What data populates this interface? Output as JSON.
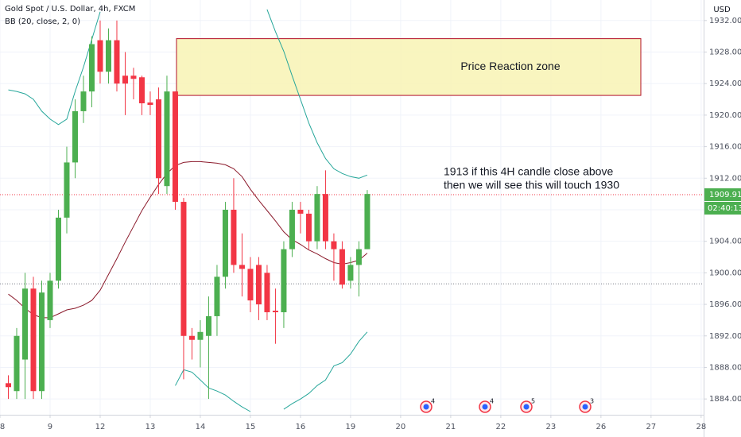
{
  "chart_data": {
    "type": "candlestick",
    "title": "Gold Spot / U.S. Dollar, 4h, FXCM",
    "subtitle": "BB (20, close, 2, 0)",
    "currency": "USD",
    "open": [
      1886,
      1885,
      1889,
      1898,
      1885,
      1894,
      1899,
      1907,
      1914,
      1920.5,
      1923,
      1929.5,
      1925.5,
      1929.5,
      1925,
      1925,
      1924.8,
      1921.6,
      1922,
      1911,
      1923,
      1909,
      1892,
      1891.5,
      1892,
      1894.5,
      1899.5,
      1908,
      1901,
      1900.5,
      1901,
      1900,
      1895.2,
      1895,
      1903,
      1908,
      1907.5,
      1904,
      1910,
      1904,
      1903,
      1899,
      1901,
      1903
    ],
    "high": [
      1887,
      1893,
      1900,
      1899.5,
      1899,
      1900,
      1908,
      1916,
      1922,
      1925,
      1930,
      1932,
      1931,
      1932,
      1928,
      1926,
      1925,
      1923,
      1923.5,
      1925,
      1923,
      1909.5,
      1893,
      1894,
      1897,
      1901,
      1909,
      1912,
      1905,
      1902,
      1902,
      1901,
      1898,
      1904,
      1909,
      1909,
      1908,
      1911,
      1913,
      1905,
      1904,
      1902,
      1904,
      1910.5
    ],
    "low": [
      1884,
      1884,
      1884,
      1884,
      1884,
      1893,
      1898,
      1905,
      1912,
      1919,
      1921,
      1924,
      1924,
      1923,
      1920,
      1922,
      1920,
      1920,
      1910,
      1910,
      1908,
      1886.5,
      1889,
      1888,
      1884,
      1892,
      1898,
      1900,
      1897,
      1895,
      1894,
      1894,
      1891,
      1893,
      1902,
      1905,
      1903,
      1903,
      1903,
      1899,
      1898,
      1898,
      1897,
      1903
    ],
    "close": [
      1885.5,
      1892,
      1898,
      1885,
      1897.5,
      1899,
      1907,
      1914,
      1920.5,
      1923,
      1929,
      1925.5,
      1929.5,
      1924,
      1924,
      1924.6,
      1921.5,
      1921.3,
      1912,
      1923,
      1909,
      1892,
      1891.5,
      1892.5,
      1894.5,
      1899.5,
      1908,
      1901,
      1900.5,
      1896.5,
      1896,
      1895,
      1895,
      1903,
      1908,
      1907.5,
      1904,
      1910,
      1904,
      1903,
      1898.5,
      1901,
      1903,
      1910
    ],
    "up_color": "#4caf50",
    "down_color": "#f23645",
    "series": [
      {
        "name": "BB upper",
        "color": "#26a69a",
        "values": [
          1923.2,
          1923.0,
          1922.7,
          1922.0,
          1920.5,
          1919.5,
          1918.8,
          1919.5,
          1923.0,
          1926.1,
          1929.6,
          1933.1,
          null,
          null,
          null,
          null,
          null,
          null,
          null,
          null,
          null,
          null,
          null,
          null,
          null,
          null,
          null,
          null,
          null,
          null,
          null,
          1933.4,
          1930.6,
          1928.1,
          1925.0,
          1922.0,
          1919.0,
          1916.5,
          1914.5,
          1913.2,
          1912.6,
          1912.2,
          1912.0,
          1912.4
        ]
      },
      {
        "name": "BB basis",
        "color": "#8b1a2b",
        "values": [
          1897.3,
          1896.5,
          1895.5,
          1894.7,
          1894.3,
          1894.3,
          1894.8,
          1895.3,
          1895.5,
          1895.9,
          1896.5,
          1897.8,
          1899.8,
          1901.8,
          1903.9,
          1905.9,
          1907.9,
          1909.6,
          1911.2,
          1912.6,
          1913.6,
          1914.0,
          1914.1,
          1914.1,
          1914.0,
          1913.9,
          1913.7,
          1913.2,
          1912.2,
          1910.6,
          1909.2,
          1907.9,
          1906.6,
          1905.2,
          1904.2,
          1903.6,
          1902.9,
          1902.4,
          1901.8,
          1901.3,
          1901.1,
          1901.3,
          1901.6,
          1902.5
        ]
      },
      {
        "name": "BB lower",
        "color": "#26a69a",
        "values": [
          null,
          null,
          null,
          null,
          null,
          null,
          null,
          null,
          null,
          null,
          null,
          null,
          null,
          null,
          null,
          null,
          null,
          null,
          null,
          null,
          1885.7,
          1887.7,
          1887.4,
          1886.4,
          1885.4,
          1885.0,
          1884.5,
          1883.7,
          1883.0,
          1882.4,
          null,
          null,
          null,
          1882.7,
          1883.4,
          1884.0,
          1884.7,
          1885.7,
          1886.4,
          1888.2,
          1888.6,
          1889.7,
          1891.3,
          1892.5
        ]
      }
    ],
    "xlim": [
      -1,
      83.3
    ],
    "xticks": [
      {
        "value": -1,
        "label": "8"
      },
      {
        "value": 5,
        "label": "9"
      },
      {
        "value": 11,
        "label": "12"
      },
      {
        "value": 17,
        "label": "13"
      },
      {
        "value": 23,
        "label": "14"
      },
      {
        "value": 29,
        "label": "15"
      },
      {
        "value": 35,
        "label": "16"
      },
      {
        "value": 41,
        "label": "19"
      },
      {
        "value": 47,
        "label": "20"
      },
      {
        "value": 53,
        "label": "21"
      },
      {
        "value": 59,
        "label": "22"
      },
      {
        "value": 65,
        "label": "23"
      },
      {
        "value": 71,
        "label": "26"
      },
      {
        "value": 77,
        "label": "27"
      },
      {
        "value": 83,
        "label": "28"
      }
    ],
    "ylim": [
      1882,
      1934.6
    ],
    "yticks": [
      {
        "value": 1884,
        "label": "1884.00"
      },
      {
        "value": 1888,
        "label": "1888.00"
      },
      {
        "value": 1892,
        "label": "1892.00"
      },
      {
        "value": 1896,
        "label": "1896.00"
      },
      {
        "value": 1900,
        "label": "1900.00"
      },
      {
        "value": 1904,
        "label": "1904.00"
      },
      {
        "value": 1908,
        "label": "1908.00"
      },
      {
        "value": 1912,
        "label": "1912.00"
      },
      {
        "value": 1916,
        "label": "1916.00"
      },
      {
        "value": 1920,
        "label": "1920.00"
      },
      {
        "value": 1924,
        "label": "1924.00"
      },
      {
        "value": 1928,
        "label": "1928.00"
      },
      {
        "value": 1932,
        "label": "1932.00"
      }
    ],
    "grid": true,
    "last_price": {
      "value": 1909.91,
      "label": "1909.91"
    },
    "countdown": "02:40:13",
    "reference_line": 1898.6,
    "zone": {
      "label": "Price Reaction zone",
      "high": 1929.7,
      "low": 1922.5
    },
    "annotation": [
      "1913 if this 4H candle close above",
      "then we will see this will touch 1930"
    ],
    "events": [
      "4",
      "4",
      "5",
      "3"
    ]
  }
}
